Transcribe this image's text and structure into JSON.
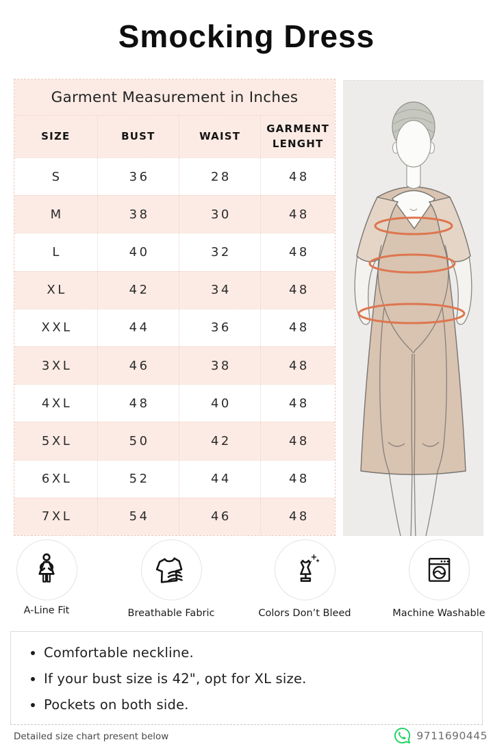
{
  "title": "Smocking Dress",
  "size_chart": {
    "caption": "Garment Measurement in Inches",
    "columns": [
      "SIZE",
      "BUST",
      "WAIST",
      "GARMENT LENGHT"
    ],
    "rows": [
      [
        "S",
        "36",
        "28",
        "48"
      ],
      [
        "M",
        "38",
        "30",
        "48"
      ],
      [
        "L",
        "40",
        "32",
        "48"
      ],
      [
        "XL",
        "42",
        "34",
        "48"
      ],
      [
        "XXL",
        "44",
        "36",
        "48"
      ],
      [
        "3XL",
        "46",
        "38",
        "48"
      ],
      [
        "4XL",
        "48",
        "40",
        "48"
      ],
      [
        "5XL",
        "50",
        "42",
        "48"
      ],
      [
        "6XL",
        "52",
        "44",
        "48"
      ],
      [
        "7XL",
        "54",
        "46",
        "48"
      ]
    ]
  },
  "features": [
    {
      "icon": "a-line-fit-icon",
      "label": "A-Line Fit"
    },
    {
      "icon": "breathable-fabric-icon",
      "label": "Breathable Fabric"
    },
    {
      "icon": "colors-dont-bleed-icon",
      "label": "Colors Don’t Bleed"
    },
    {
      "icon": "machine-washable-icon",
      "label": "Machine Washable"
    }
  ],
  "notes": [
    "Comfortable neckline.",
    "If your bust size is 42\", opt for XL size.",
    "Pockets on both side."
  ],
  "footer": {
    "note": "Detailed size chart present below",
    "phone": "9711690445"
  },
  "colors": {
    "row_pink": "#fcebe4",
    "panel_gray": "#edeceb",
    "measure_orange": "#dd764e",
    "dress_tan": "#d9c3b1",
    "whatsapp_green": "#25D366"
  }
}
